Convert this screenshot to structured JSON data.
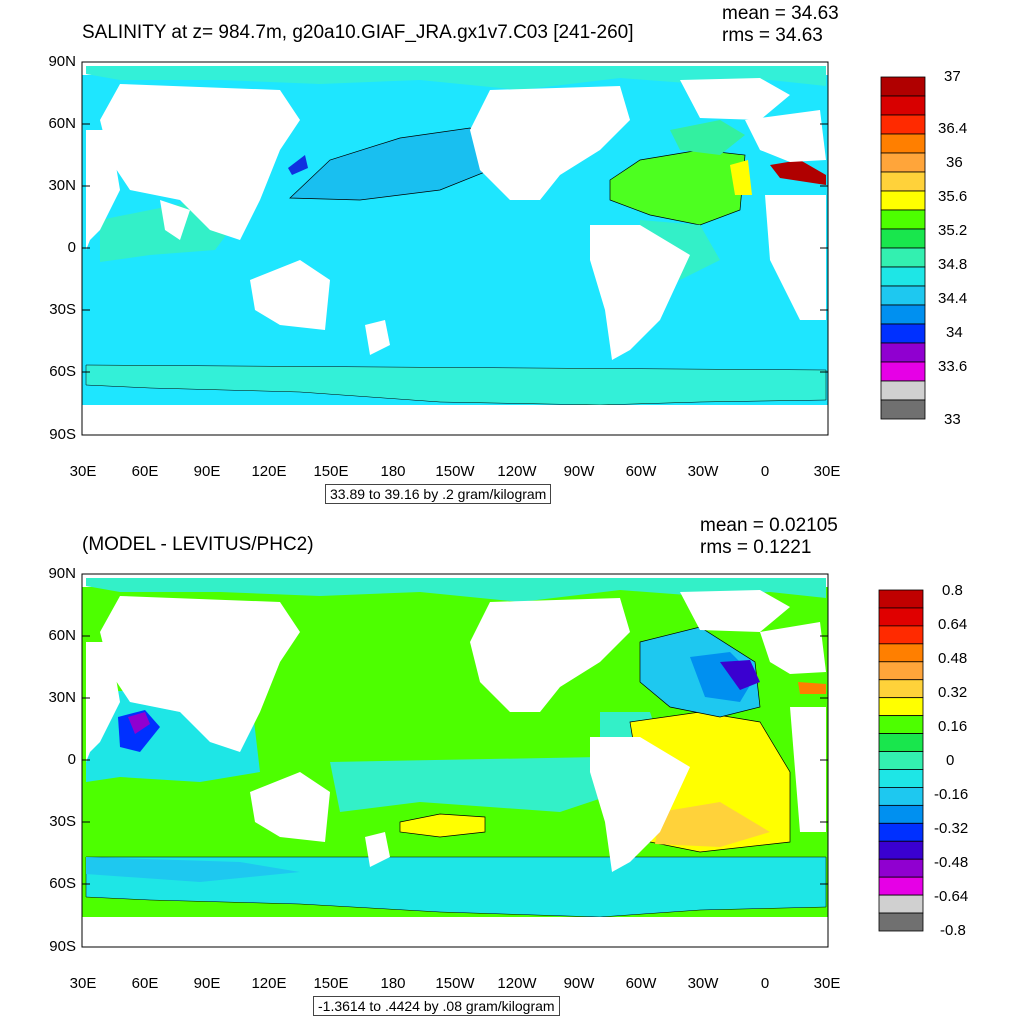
{
  "panels": [
    {
      "title": "SALINITY at z= 984.7m, g20a10.GIAF_JRA.gx1v7.C03 [241-260]",
      "mean_label": "mean = 34.63",
      "rms_label": "rms = 34.63",
      "range_label": "33.89 to 39.16 by .2 gram/kilogram",
      "yticks": [
        "90N",
        "60N",
        "30N",
        "0",
        "30S",
        "60S",
        "90S"
      ],
      "xticks": [
        "30E",
        "60E",
        "90E",
        "120E",
        "150E",
        "180",
        "150W",
        "120W",
        "90W",
        "60W",
        "30W",
        "0",
        "30E"
      ],
      "colorbar_labels": [
        "37",
        "36.4",
        "36",
        "35.6",
        "35.2",
        "34.8",
        "34.4",
        "34",
        "33.6",
        "33"
      ],
      "colorbar_colors": [
        "#b00000",
        "#d80000",
        "#ff2a00",
        "#ff7f00",
        "#ffa53a",
        "#ffd23a",
        "#ffff00",
        "#4dff00",
        "#19e64d",
        "#33f0b0",
        "#1ee6e6",
        "#1ec8f0",
        "#0090f0",
        "#0030ff",
        "#9000d0",
        "#e600e6",
        "#d0d0d0",
        "#707070"
      ]
    },
    {
      "title": "(MODEL - LEVITUS/PHC2)",
      "mean_label": "mean = 0.02105",
      "rms_label": "rms = 0.1221",
      "range_label": "-1.3614 to .4424 by .08 gram/kilogram",
      "yticks": [
        "90N",
        "60N",
        "30N",
        "0",
        "30S",
        "60S",
        "90S"
      ],
      "xticks": [
        "30E",
        "60E",
        "90E",
        "120E",
        "150E",
        "180",
        "150W",
        "120W",
        "90W",
        "60W",
        "30W",
        "0",
        "30E"
      ],
      "colorbar_labels": [
        "0.8",
        "0.64",
        "0.48",
        "0.32",
        "0.16",
        "0",
        "-0.16",
        "-0.32",
        "-0.48",
        "-0.64",
        "-0.8"
      ],
      "colorbar_colors": [
        "#c00000",
        "#e00000",
        "#ff2a00",
        "#ff7f00",
        "#ffa53a",
        "#ffd23a",
        "#ffff00",
        "#4dff00",
        "#19e64d",
        "#33f0b0",
        "#1ee6e6",
        "#1ec8f0",
        "#0090f0",
        "#0030ff",
        "#3a00d0",
        "#9000d0",
        "#e600e6",
        "#d0d0d0",
        "#707070"
      ]
    }
  ],
  "chart_data": [
    {
      "type": "heatmap",
      "title": "SALINITY at z= 984.7m, g20a10.GIAF_JRA.gx1v7.C03 [241-260]",
      "projection": "cylindrical equidistant",
      "xlim": [
        "30E",
        "30E"
      ],
      "ylim": [
        "90S",
        "90N"
      ],
      "mean": 34.63,
      "rms": 34.63,
      "contour_min": 33.89,
      "contour_max": 39.16,
      "contour_interval": 0.2,
      "units": "gram/kilogram",
      "colorbar_levels": [
        33,
        33.6,
        34,
        34.4,
        34.8,
        35.2,
        35.6,
        36,
        36.4,
        37
      ]
    },
    {
      "type": "heatmap",
      "title": "(MODEL - LEVITUS/PHC2)",
      "projection": "cylindrical equidistant",
      "xlim": [
        "30E",
        "30E"
      ],
      "ylim": [
        "90S",
        "90N"
      ],
      "mean": 0.02105,
      "rms": 0.1221,
      "contour_min": -1.3614,
      "contour_max": 0.4424,
      "contour_interval": 0.08,
      "units": "gram/kilogram",
      "colorbar_levels": [
        -0.8,
        -0.64,
        -0.48,
        -0.32,
        -0.16,
        0,
        0.16,
        0.32,
        0.48,
        0.64,
        0.8
      ]
    }
  ]
}
